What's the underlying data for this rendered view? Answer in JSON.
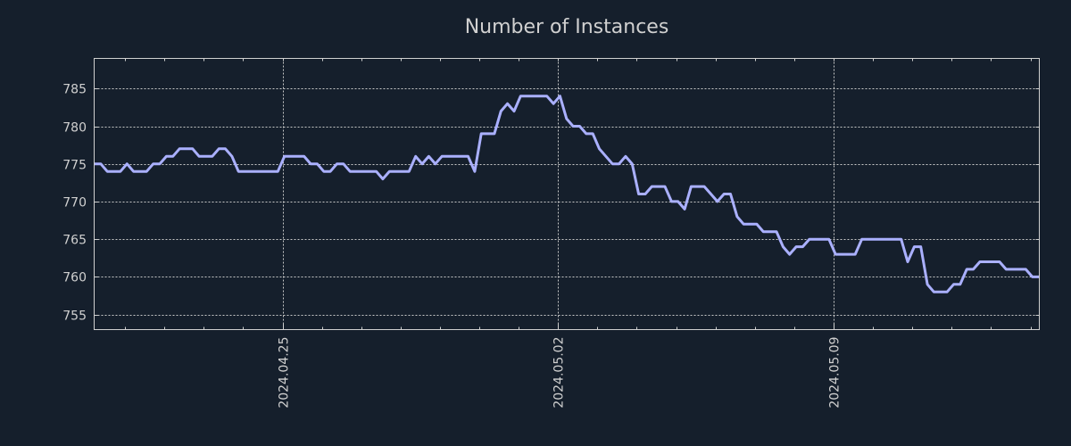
{
  "chart_data": {
    "type": "line",
    "title": "Number of Instances",
    "xlabel": "",
    "ylabel": "",
    "x_start": "2024-04-20T05:10:00Z",
    "x_interval_hours": 4,
    "xlim": [
      "2024-04-20T05:10:00Z",
      "2024-05-14T05:25:00Z"
    ],
    "ylim": [
      753,
      789
    ],
    "grid": true,
    "x_ticks": [
      {
        "date": "2024-04-25T00:00:00Z",
        "label": "2024.04.25"
      },
      {
        "date": "2024-05-02T00:00:00Z",
        "label": "2024.05.02"
      },
      {
        "date": "2024-05-09T00:00:00Z",
        "label": "2024.05.09"
      }
    ],
    "y_ticks": [
      755,
      760,
      765,
      770,
      775,
      780,
      785
    ],
    "y_tick_labels": [
      "755",
      "760",
      "765",
      "770",
      "775",
      "780",
      "785"
    ],
    "series": [
      {
        "name": "Number of Instances",
        "color": "#aab0ff",
        "values": [
          775,
          775,
          774,
          774,
          774,
          775,
          774,
          774,
          774,
          775,
          775,
          776,
          776,
          777,
          777,
          777,
          776,
          776,
          776,
          777,
          777,
          776,
          774,
          774,
          774,
          774,
          774,
          774,
          774,
          776,
          776,
          776,
          776,
          775,
          775,
          774,
          774,
          775,
          775,
          774,
          774,
          774,
          774,
          774,
          773,
          774,
          774,
          774,
          774,
          776,
          775,
          776,
          775,
          776,
          776,
          776,
          776,
          776,
          774,
          779,
          779,
          779,
          782,
          783,
          782,
          784,
          784,
          784,
          784,
          784,
          783,
          784,
          781,
          780,
          780,
          779,
          779,
          777,
          776,
          775,
          775,
          776,
          775,
          771,
          771,
          772,
          772,
          772,
          770,
          770,
          769,
          772,
          772,
          772,
          771,
          770,
          771,
          771,
          768,
          767,
          767,
          767,
          766,
          766,
          766,
          764,
          763,
          764,
          764,
          765,
          765,
          765,
          765,
          763,
          763,
          763,
          763,
          765,
          765,
          765,
          765,
          765,
          765,
          765,
          762,
          764,
          764,
          759,
          758,
          758,
          758,
          759,
          759,
          761,
          761,
          762,
          762,
          762,
          762,
          761,
          761,
          761,
          761,
          760,
          760
        ]
      }
    ]
  }
}
